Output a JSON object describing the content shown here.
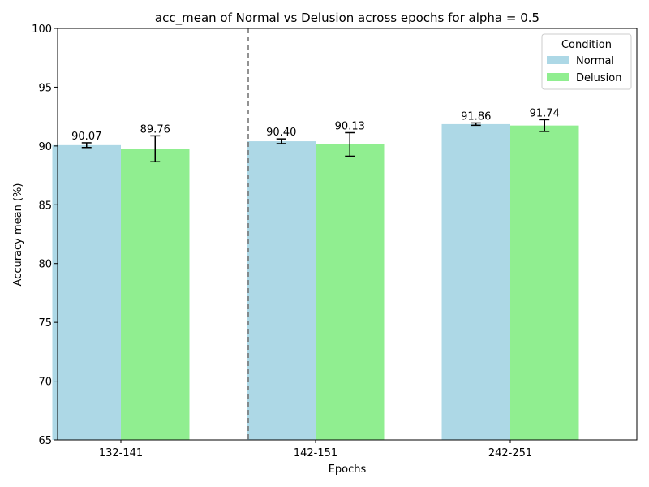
{
  "chart_data": {
    "type": "bar",
    "title": "acc_mean of Normal vs Delusion across epochs for alpha = 0.5",
    "xlabel": "Epochs",
    "ylabel": "Accuracy mean (%)",
    "ylim": [
      65,
      100
    ],
    "yticks": [
      65,
      70,
      75,
      80,
      85,
      90,
      95,
      100
    ],
    "categories": [
      "132-141",
      "142-151",
      "242-251"
    ],
    "series": [
      {
        "name": "Normal",
        "color": "#add8e6",
        "values": [
          90.07,
          90.4,
          91.86
        ],
        "errors": [
          0.2,
          0.2,
          0.1
        ],
        "value_labels": [
          "90.07",
          "90.40",
          "91.86"
        ]
      },
      {
        "name": "Delusion",
        "color": "#90ee90",
        "values": [
          89.76,
          90.13,
          91.74
        ],
        "errors": [
          1.1,
          1.0,
          0.5
        ],
        "value_labels": [
          "89.76",
          "90.13",
          "91.74"
        ]
      }
    ],
    "legend": {
      "title": "Condition",
      "position": "top-right"
    },
    "separator_after_category": 0,
    "grid": false
  }
}
